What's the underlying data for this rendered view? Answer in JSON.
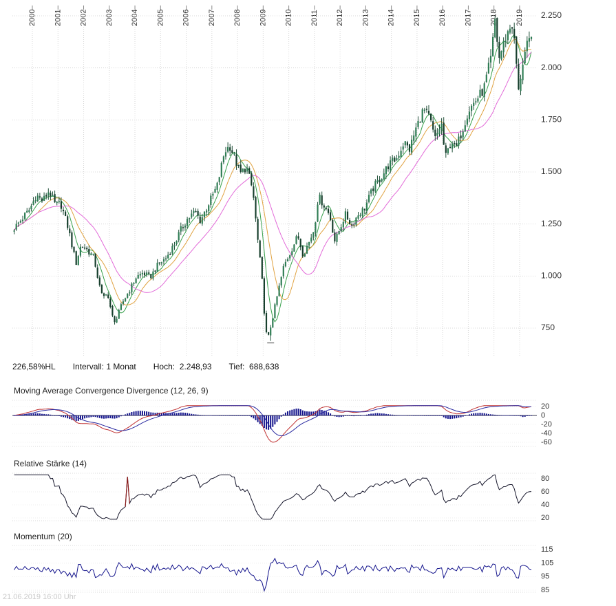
{
  "meta": {
    "timestamp": "21.06.2019 16:00 Uhr"
  },
  "stats": {
    "range_pct": "226,58%HL",
    "interval_label": "Intervall: 1 Monat",
    "high_label": "Hoch:  2.248,93",
    "low_label": "Tief:  688,638"
  },
  "chart_data": [
    {
      "type": "candlestick",
      "name": "price-panel",
      "title": "",
      "interval": "1 Monat",
      "x_ticks": [
        "2000",
        "2001",
        "2002",
        "2003",
        "2004",
        "2005",
        "2006",
        "2007",
        "2008",
        "2009",
        "2010",
        "2011",
        "2012",
        "2013",
        "2014",
        "2015",
        "2016",
        "2017",
        "2018",
        "2019"
      ],
      "y_ticks": [
        {
          "label": "2.250",
          "value": 2250
        },
        {
          "label": "2.000",
          "value": 2000
        },
        {
          "label": "1.750",
          "value": 1750
        },
        {
          "label": "1.500",
          "value": 1500
        },
        {
          "label": "1.250",
          "value": 1250
        },
        {
          "label": "1.000",
          "value": 1000
        },
        {
          "label": "750",
          "value": 750
        }
      ],
      "y_range": [
        620,
        2280
      ],
      "high": 2248.93,
      "low": 688.638,
      "series": [
        {
          "name": "price",
          "type": "candles",
          "color_up": "#2f7d54",
          "color_down": "#173f2d",
          "wick_color": "#1f4f38",
          "keypoints": [
            [
              1999.29,
              1230
            ],
            [
              1999.6,
              1275
            ],
            [
              1999.9,
              1320
            ],
            [
              2000.15,
              1390
            ],
            [
              2000.4,
              1360
            ],
            [
              2000.65,
              1410
            ],
            [
              2000.9,
              1340
            ],
            [
              2001.1,
              1350
            ],
            [
              2001.4,
              1230
            ],
            [
              2001.7,
              1060
            ],
            [
              2001.9,
              1150
            ],
            [
              2002.1,
              1130
            ],
            [
              2002.4,
              1090
            ],
            [
              2002.6,
              960
            ],
            [
              2002.75,
              890
            ],
            [
              2002.9,
              930
            ],
            [
              2003.1,
              810
            ],
            [
              2003.25,
              780
            ],
            [
              2003.5,
              870
            ],
            [
              2003.8,
              935
            ],
            [
              2004.05,
              995
            ],
            [
              2004.3,
              1015
            ],
            [
              2004.6,
              995
            ],
            [
              2004.9,
              1055
            ],
            [
              2005.2,
              1085
            ],
            [
              2005.5,
              1145
            ],
            [
              2005.8,
              1225
            ],
            [
              2006.05,
              1275
            ],
            [
              2006.35,
              1310
            ],
            [
              2006.55,
              1265
            ],
            [
              2006.9,
              1355
            ],
            [
              2007.2,
              1430
            ],
            [
              2007.5,
              1600
            ],
            [
              2007.7,
              1625
            ],
            [
              2007.9,
              1565
            ],
            [
              2008.1,
              1490
            ],
            [
              2008.35,
              1525
            ],
            [
              2008.6,
              1405
            ],
            [
              2008.8,
              1160
            ],
            [
              2008.95,
              990
            ],
            [
              2009.1,
              730
            ],
            [
              2009.2,
              705
            ],
            [
              2009.35,
              790
            ],
            [
              2009.55,
              905
            ],
            [
              2009.8,
              1045
            ],
            [
              2010.1,
              1125
            ],
            [
              2010.35,
              1195
            ],
            [
              2010.55,
              1105
            ],
            [
              2010.8,
              1165
            ],
            [
              2011.0,
              1230
            ],
            [
              2011.15,
              1385
            ],
            [
              2011.4,
              1335
            ],
            [
              2011.6,
              1290
            ],
            [
              2011.8,
              1165
            ],
            [
              2011.95,
              1215
            ],
            [
              2012.2,
              1295
            ],
            [
              2012.45,
              1245
            ],
            [
              2012.7,
              1295
            ],
            [
              2012.95,
              1325
            ],
            [
              2013.3,
              1425
            ],
            [
              2013.6,
              1475
            ],
            [
              2013.9,
              1535
            ],
            [
              2014.2,
              1565
            ],
            [
              2014.5,
              1645
            ],
            [
              2014.7,
              1605
            ],
            [
              2014.95,
              1705
            ],
            [
              2015.25,
              1800
            ],
            [
              2015.5,
              1755
            ],
            [
              2015.7,
              1655
            ],
            [
              2015.95,
              1735
            ],
            [
              2016.1,
              1565
            ],
            [
              2016.35,
              1655
            ],
            [
              2016.5,
              1605
            ],
            [
              2016.8,
              1715
            ],
            [
              2017.0,
              1795
            ],
            [
              2017.3,
              1845
            ],
            [
              2017.6,
              1895
            ],
            [
              2017.9,
              2055
            ],
            [
              2018.04,
              2230
            ],
            [
              2018.2,
              2045
            ],
            [
              2018.45,
              2145
            ],
            [
              2018.7,
              2215
            ],
            [
              2018.85,
              2065
            ],
            [
              2018.95,
              1875
            ],
            [
              2019.1,
              2015
            ],
            [
              2019.25,
              2095
            ],
            [
              2019.46,
              2135
            ]
          ]
        },
        {
          "name": "sma-fast",
          "type": "sma",
          "period": 6,
          "color": "#37a04b"
        },
        {
          "name": "sma-medium",
          "type": "sma",
          "period": 12,
          "color": "#e0a240"
        },
        {
          "name": "sma-slow",
          "type": "sma",
          "period": 24,
          "color": "#e26ad8"
        }
      ]
    },
    {
      "type": "line",
      "name": "macd-panel",
      "title": "Moving Average Convergence Divergence (12, 26, 9)",
      "params": {
        "fast": 12,
        "slow": 26,
        "signal": 9
      },
      "y_ticks": [
        {
          "label": "20",
          "value": 20
        },
        {
          "label": "0",
          "value": 0
        },
        {
          "label": "-20",
          "value": -20
        },
        {
          "label": "-40",
          "value": -40
        },
        {
          "label": "-60",
          "value": -60
        }
      ],
      "colors": {
        "histogram": "#14148c",
        "macd": "#c03030",
        "signal": "#2a2aa0",
        "zero_line": "#33334d"
      }
    },
    {
      "type": "line",
      "name": "rsi-panel",
      "title": "Relative Stärke (14)",
      "params": {
        "period": 14
      },
      "y_ticks": [
        {
          "label": "80",
          "value": 80
        },
        {
          "label": "60",
          "value": 60
        },
        {
          "label": "40",
          "value": 40
        },
        {
          "label": "20",
          "value": 20
        }
      ],
      "spike": {
        "t": 2003.7,
        "value": 83
      },
      "colors": {
        "line": "#15152a",
        "spike": "#8b1a1a"
      }
    },
    {
      "type": "line",
      "name": "momentum-panel",
      "title": "Momentum (20)",
      "params": {
        "period": 20
      },
      "y_ticks": [
        {
          "label": "115",
          "value": 115
        },
        {
          "label": "105",
          "value": 105
        },
        {
          "label": "95",
          "value": 95
        },
        {
          "label": "85",
          "value": 85
        }
      ],
      "colors": {
        "line": "#14148c"
      }
    }
  ]
}
